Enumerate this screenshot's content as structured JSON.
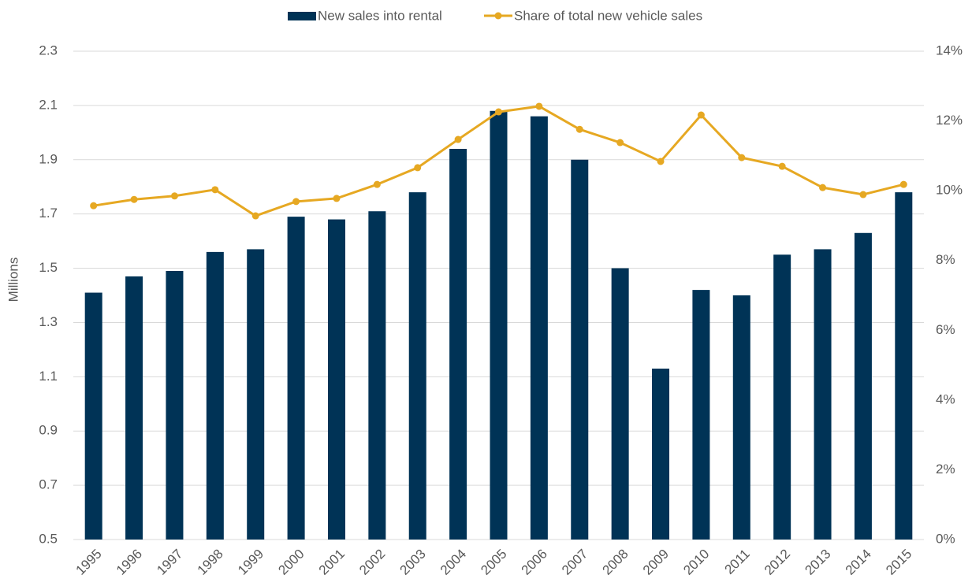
{
  "chart_data": {
    "type": "bar-line",
    "y_label": "Millions",
    "categories": [
      "1995",
      "1996",
      "1997",
      "1998",
      "1999",
      "2000",
      "2001",
      "2002",
      "2003",
      "2004",
      "2005",
      "2006",
      "2007",
      "2008",
      "2009",
      "2010",
      "2011",
      "2012",
      "2013",
      "2014",
      "2015"
    ],
    "series": [
      {
        "name": "New sales into rental",
        "type": "bar",
        "color": "#003356",
        "values": [
          1.41,
          1.47,
          1.49,
          1.56,
          1.57,
          1.69,
          1.68,
          1.71,
          1.78,
          1.94,
          2.08,
          2.06,
          1.9,
          1.5,
          1.13,
          1.42,
          1.4,
          1.55,
          1.57,
          1.63,
          1.78
        ]
      },
      {
        "name": "Share of total new vehicle sales",
        "type": "line",
        "axis": "y2",
        "color": "#e6a822",
        "values": [
          9.57,
          9.75,
          9.85,
          10.03,
          9.28,
          9.69,
          9.78,
          10.18,
          10.66,
          11.47,
          12.26,
          12.42,
          11.76,
          11.38,
          10.84,
          12.17,
          10.95,
          10.7,
          10.09,
          9.89,
          10.18
        ]
      }
    ],
    "ylim": [
      0.5,
      2.3
    ],
    "yticks": [
      0.5,
      0.7,
      0.9,
      1.1,
      1.3,
      1.5,
      1.7,
      1.9,
      2.1,
      2.3
    ],
    "y2lim": [
      0,
      14
    ],
    "y2ticks": [
      {
        "value": 0,
        "label": "0%"
      },
      {
        "value": 2,
        "label": "2%"
      },
      {
        "value": 4,
        "label": "4%"
      },
      {
        "value": 6,
        "label": "6%"
      },
      {
        "value": 8,
        "label": "8%"
      },
      {
        "value": 10,
        "label": "10%"
      },
      {
        "value": 12,
        "label": "12%"
      },
      {
        "value": 14,
        "label": "14%"
      }
    ],
    "grid": true,
    "legend": "top"
  }
}
